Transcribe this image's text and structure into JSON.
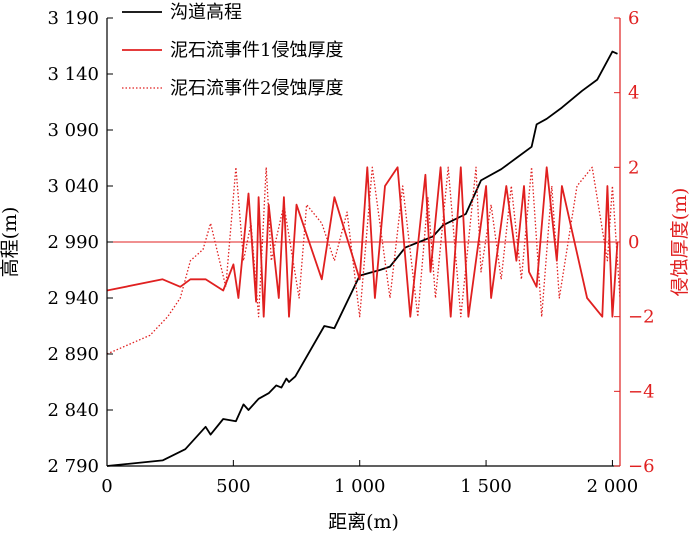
{
  "chart_data": {
    "type": "line",
    "xlabel": "距离(m)",
    "ylabel_left": "高程(m)",
    "ylabel_right": "侵蚀厚度(m)",
    "xlim": [
      0,
      2030
    ],
    "ylim_left": [
      2790,
      3190
    ],
    "ylim_right": [
      -6,
      6
    ],
    "x_ticks": [
      0,
      500,
      1000,
      1500,
      2000
    ],
    "x_tick_labels": [
      "0",
      "500",
      "1 000",
      "1 500",
      "2 000"
    ],
    "y_left_ticks": [
      2790,
      2840,
      2890,
      2940,
      2990,
      3040,
      3090,
      3140,
      3190
    ],
    "y_left_tick_labels": [
      "2 790",
      "2 840",
      "2 890",
      "2 940",
      "2 990",
      "3 040",
      "3 090",
      "3 140",
      "3 190"
    ],
    "y_right_ticks": [
      -6,
      -4,
      -2,
      0,
      2,
      4,
      6
    ],
    "y_right_tick_labels": [
      "−6",
      "−4",
      "−2",
      "0",
      "2",
      "4",
      "6"
    ],
    "legend_position": "top-left",
    "reference_line": {
      "axis": "right",
      "value": 0,
      "color": "#e02020"
    },
    "series": [
      {
        "name": "沟道高程",
        "axis": "left",
        "color": "#000000",
        "style": "solid",
        "x": [
          0,
          220,
          310,
          390,
          410,
          460,
          510,
          540,
          560,
          600,
          640,
          670,
          690,
          710,
          720,
          745,
          860,
          900,
          1000,
          1080,
          1120,
          1180,
          1290,
          1330,
          1420,
          1480,
          1560,
          1620,
          1680,
          1700,
          1740,
          1800,
          1880,
          1940,
          2000,
          2020
        ],
        "y": [
          2790,
          2795,
          2805,
          2825,
          2818,
          2832,
          2830,
          2845,
          2840,
          2850,
          2855,
          2862,
          2860,
          2868,
          2865,
          2870,
          2915,
          2913,
          2960,
          2965,
          2968,
          2985,
          2995,
          3005,
          3015,
          3045,
          3055,
          3065,
          3075,
          3095,
          3100,
          3110,
          3125,
          3135,
          3160,
          3158
        ]
      },
      {
        "name": "泥石流事件1侵蚀厚度",
        "axis": "right",
        "color": "#e02020",
        "style": "solid",
        "x": [
          0,
          220,
          290,
          330,
          390,
          460,
          500,
          520,
          560,
          590,
          600,
          620,
          640,
          680,
          700,
          720,
          750,
          850,
          900,
          1000,
          1030,
          1060,
          1100,
          1150,
          1200,
          1260,
          1280,
          1320,
          1360,
          1390,
          1400,
          1430,
          1500,
          1520,
          1580,
          1620,
          1650,
          1670,
          1700,
          1740,
          1780,
          1800,
          1900,
          1960,
          1980,
          2000,
          2020
        ],
        "y": [
          -1.3,
          -1.0,
          -1.2,
          -1.0,
          -1.0,
          -1.3,
          -0.6,
          -1.5,
          1.3,
          -1.6,
          1.2,
          -2.0,
          1.0,
          -1.5,
          1.2,
          -2.0,
          1.0,
          -1.0,
          1.2,
          -1.0,
          2.0,
          -1.5,
          1.5,
          2.0,
          -2.0,
          1.8,
          -0.8,
          2.0,
          -2.0,
          1.0,
          2.0,
          -2.0,
          1.5,
          -1.5,
          1.5,
          -0.5,
          1.5,
          -0.8,
          -1.2,
          2.0,
          -0.5,
          1.5,
          -1.5,
          -2.0,
          1.5,
          -2.0,
          0.0
        ]
      },
      {
        "name": "泥石流事件2侵蚀厚度",
        "axis": "right",
        "color": "#e02020",
        "style": "dotted",
        "x": [
          0,
          170,
          240,
          290,
          330,
          380,
          410,
          470,
          510,
          540,
          570,
          600,
          630,
          650,
          700,
          760,
          790,
          850,
          900,
          950,
          1000,
          1050,
          1120,
          1170,
          1230,
          1270,
          1300,
          1350,
          1400,
          1460,
          1480,
          1520,
          1560,
          1600,
          1640,
          1680,
          1720,
          1760,
          1790,
          1860,
          1920,
          1980,
          2000,
          2030
        ],
        "y": [
          -3.0,
          -2.5,
          -2.0,
          -1.5,
          -0.5,
          -0.2,
          0.5,
          -1.2,
          2.0,
          -0.5,
          0.5,
          -2.0,
          2.0,
          -0.5,
          1.0,
          -1.5,
          1.0,
          0.5,
          -0.5,
          0.8,
          -2.0,
          2.0,
          -1.5,
          1.5,
          -2.0,
          1.2,
          -1.5,
          2.0,
          -2.0,
          2.0,
          -0.8,
          1.0,
          -1.0,
          1.5,
          -1.0,
          2.0,
          -2.0,
          1.5,
          -1.5,
          1.5,
          2.0,
          -0.5,
          1.5,
          -1.5
        ]
      }
    ]
  }
}
